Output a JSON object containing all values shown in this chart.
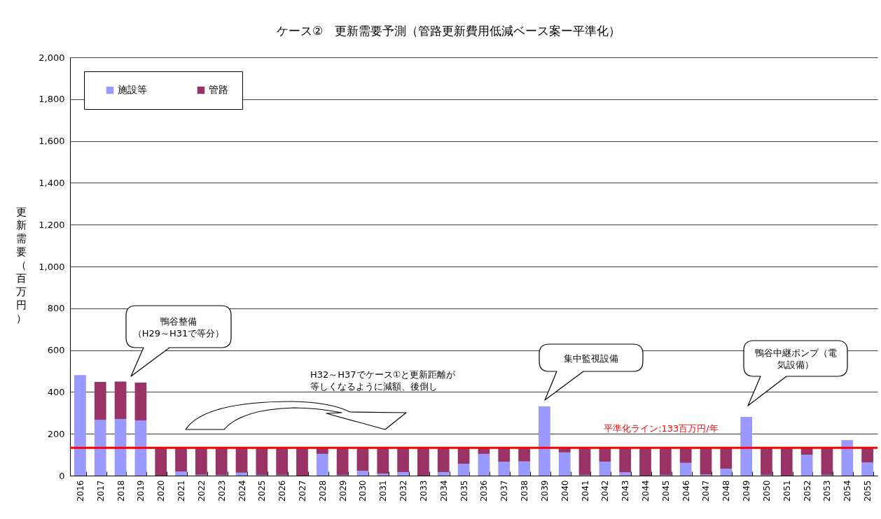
{
  "chart_data": {
    "type": "bar",
    "title": "ケース②　更新需要予測（管路更新費用低減ベース案ー平準化）",
    "ylabel": "更新需要（百万円）",
    "categories": [
      "2016",
      "2017",
      "2018",
      "2019",
      "2020",
      "2021",
      "2022",
      "2023",
      "2024",
      "2025",
      "2026",
      "2027",
      "2028",
      "2029",
      "2030",
      "2031",
      "2032",
      "2033",
      "2034",
      "2035",
      "2036",
      "2037",
      "2038",
      "2039",
      "2040",
      "2041",
      "2042",
      "2043",
      "2044",
      "2045",
      "2046",
      "2047",
      "2048",
      "2049",
      "2050",
      "2051",
      "2052",
      "2053",
      "2054",
      "2055"
    ],
    "stacked": true,
    "series": [
      {
        "name": "施設等",
        "color": "#9999ff",
        "values": [
          481,
          267,
          271,
          264,
          null,
          20,
          4,
          3,
          14,
          3,
          3,
          null,
          104,
          3,
          23,
          9,
          17,
          null,
          17,
          57,
          104,
          66,
          68,
          331,
          111,
          3,
          67,
          16,
          null,
          3,
          61,
          5,
          33,
          281,
          3,
          null,
          100,
          3,
          170,
          63
        ]
      },
      {
        "name": "管路",
        "color": "#993366",
        "values": [
          null,
          181,
          179,
          181,
          133,
          113,
          129,
          130,
          119,
          130,
          130,
          133,
          29,
          130,
          110,
          124,
          116,
          133,
          116,
          76,
          29,
          67,
          65,
          null,
          22,
          130,
          66,
          117,
          133,
          130,
          72,
          128,
          100,
          null,
          130,
          133,
          33,
          130,
          null,
          70
        ]
      }
    ],
    "ylim": [
      0,
      2000
    ],
    "yticks": [
      0,
      200,
      400,
      600,
      800,
      {
        "value": 1000,
        "label": "1,000"
      },
      {
        "value": 1200,
        "label": "1,200"
      },
      {
        "value": 1400,
        "label": "1,400"
      },
      {
        "value": 1600,
        "label": "1,600"
      },
      {
        "value": 1800,
        "label": "1,800"
      },
      {
        "value": 2000,
        "label": "2,000"
      }
    ],
    "grid": "y",
    "legend": "top left",
    "ref_lines": [
      {
        "axis": "y",
        "value": 133,
        "label": "平準化ライン:133百万円/年",
        "color": "#ff0000"
      }
    ],
    "annotations": [
      "鴨谷整備（H29～H31で等分）",
      "H32～H37でケース①と更新距離が等しくなるように減額、後倒し",
      "集中監視設備",
      "鴨谷中継ポンプ（電気設備）"
    ]
  }
}
